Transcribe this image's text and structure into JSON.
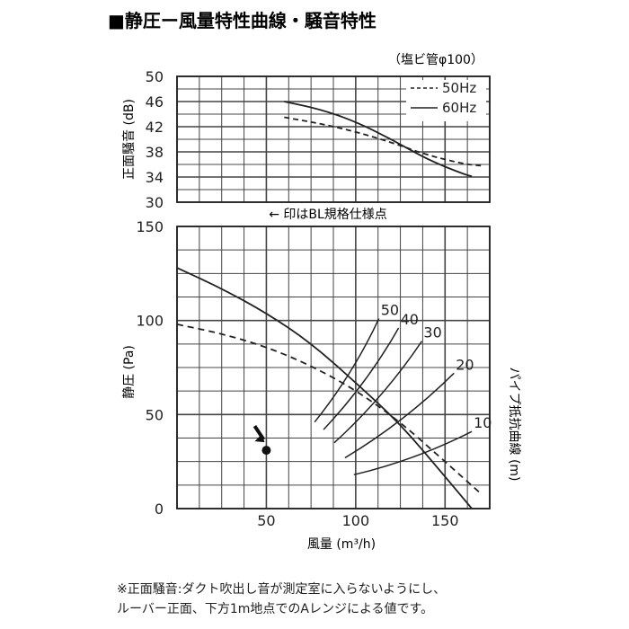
{
  "header": {
    "title": "■静圧ー風量特性曲線・騒音特性",
    "pipe_note": "（塩ビ管φ100）"
  },
  "noise_chart": {
    "ylabel": "正面騒音 (dB)",
    "yticks": [
      "50",
      "46",
      "42",
      "38",
      "34",
      "30"
    ],
    "legend": [
      {
        "label": "50Hz",
        "style": "dashed"
      },
      {
        "label": "60Hz",
        "style": "solid"
      }
    ],
    "bl_note": "← 印はBL規格仕様点"
  },
  "pressure_chart": {
    "ylabel": "静圧 (Pa)",
    "yticks": [
      "150",
      "100",
      "50",
      "0"
    ],
    "xticks": [
      "50",
      "100",
      "150"
    ],
    "xlabel": "風量 (m³/h)",
    "right_label": "パイプ抵抗曲線 (m)",
    "pipe_labels": [
      "50",
      "40",
      "30",
      "20",
      "10"
    ]
  },
  "chart_data": [
    {
      "type": "line",
      "title": "",
      "xlabel": "",
      "ylabel": "正面騒音 (dB)",
      "xlim": [
        0,
        175
      ],
      "ylim": [
        30,
        50
      ],
      "series": [
        {
          "name": "50Hz",
          "style": "dashed",
          "x": [
            60,
            80,
            100,
            120,
            140,
            160,
            170
          ],
          "y": [
            43.5,
            42.5,
            41.2,
            39.5,
            37.5,
            36.1,
            35.8
          ]
        },
        {
          "name": "60Hz",
          "style": "solid",
          "x": [
            60,
            80,
            100,
            120,
            140,
            160,
            165
          ],
          "y": [
            46.0,
            44.8,
            42.8,
            40.0,
            36.8,
            34.5,
            34.1
          ]
        }
      ]
    },
    {
      "type": "line",
      "title": "",
      "xlabel": "風量 (m³/h)",
      "ylabel": "静圧 (Pa)",
      "xlim": [
        0,
        175
      ],
      "ylim": [
        0,
        150
      ],
      "series": [
        {
          "style": "solid",
          "x": [
            0,
            25,
            50,
            75,
            100,
            125,
            150,
            165
          ],
          "y": [
            128,
            117,
            104,
            88,
            67,
            45,
            17,
            0
          ]
        },
        {
          "style": "dashed",
          "x": [
            0,
            25,
            50,
            75,
            100,
            125,
            150,
            170
          ],
          "y": [
            98,
            93,
            86,
            76,
            63,
            46,
            25,
            8
          ]
        }
      ],
      "pipe_curves": [
        {
          "label": "50",
          "x": [
            77,
            113
          ],
          "y": [
            46,
            101
          ]
        },
        {
          "label": "40",
          "x": [
            82,
            124
          ],
          "y": [
            42,
            96
          ]
        },
        {
          "label": "30",
          "x": [
            88,
            137
          ],
          "y": [
            35,
            89
          ]
        },
        {
          "label": "20",
          "x": [
            94,
            155
          ],
          "y": [
            27,
            72
          ]
        },
        {
          "label": "10",
          "x": [
            99,
            165
          ],
          "y": [
            18,
            41
          ]
        }
      ],
      "bl_point": {
        "x": 50,
        "y": 31
      }
    }
  ]
}
